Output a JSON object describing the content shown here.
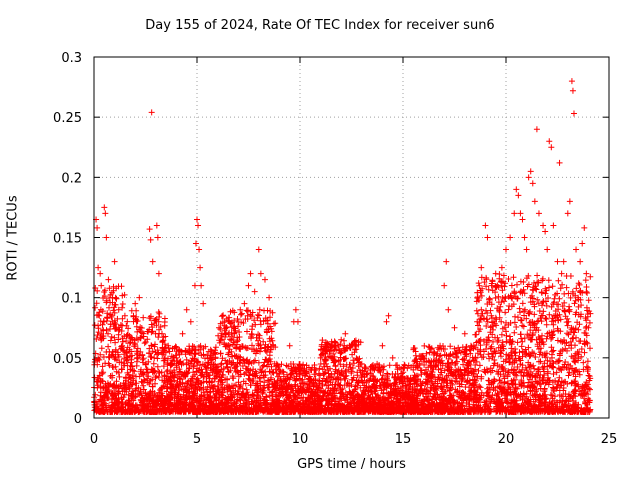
{
  "chart_data": {
    "type": "scatter",
    "title": "Day 155 of 2024, Rate Of TEC Index for receiver sun6",
    "xlabel": "GPS time / hours",
    "ylabel": "ROTI / TECUs",
    "xlim": [
      0,
      25
    ],
    "ylim": [
      0,
      0.3
    ],
    "xticks": [
      0,
      5,
      10,
      15,
      20,
      25
    ],
    "yticks": [
      0,
      0.05,
      0.1,
      0.15,
      0.2,
      0.25,
      0.3
    ],
    "xtick_labels": [
      "0",
      "5",
      "10",
      "15",
      "20",
      "25"
    ],
    "ytick_labels": [
      "0",
      "0.05",
      "0.1",
      "0.15",
      "0.2",
      "0.25",
      "0.3"
    ],
    "grid": true,
    "marker": "+",
    "color": "#ff0000",
    "series": [
      {
        "name": "ROTI",
        "points": [
          [
            0.1,
            0.165
          ],
          [
            0.15,
            0.158
          ],
          [
            0.2,
            0.125
          ],
          [
            0.3,
            0.12
          ],
          [
            0.35,
            0.11
          ],
          [
            0.5,
            0.175
          ],
          [
            0.55,
            0.17
          ],
          [
            0.6,
            0.15
          ],
          [
            0.7,
            0.115
          ],
          [
            0.9,
            0.1
          ],
          [
            1.0,
            0.13
          ],
          [
            1.2,
            0.09
          ],
          [
            1.5,
            0.085
          ],
          [
            2.0,
            0.095
          ],
          [
            2.2,
            0.1
          ],
          [
            2.8,
            0.254
          ],
          [
            2.7,
            0.157
          ],
          [
            2.75,
            0.148
          ],
          [
            2.85,
            0.13
          ],
          [
            3.05,
            0.16
          ],
          [
            3.1,
            0.15
          ],
          [
            3.15,
            0.12
          ],
          [
            3.3,
            0.07
          ],
          [
            3.6,
            0.06
          ],
          [
            4.0,
            0.05
          ],
          [
            4.3,
            0.07
          ],
          [
            4.5,
            0.09
          ],
          [
            4.7,
            0.08
          ],
          [
            4.9,
            0.11
          ],
          [
            4.95,
            0.145
          ],
          [
            5.0,
            0.165
          ],
          [
            5.05,
            0.16
          ],
          [
            5.1,
            0.14
          ],
          [
            5.15,
            0.125
          ],
          [
            5.2,
            0.11
          ],
          [
            5.3,
            0.095
          ],
          [
            6.2,
            0.04
          ],
          [
            6.5,
            0.06
          ],
          [
            6.8,
            0.07
          ],
          [
            7.1,
            0.09
          ],
          [
            7.3,
            0.095
          ],
          [
            7.5,
            0.11
          ],
          [
            7.6,
            0.12
          ],
          [
            7.8,
            0.105
          ],
          [
            8.0,
            0.14
          ],
          [
            8.1,
            0.12
          ],
          [
            8.3,
            0.115
          ],
          [
            8.5,
            0.1
          ],
          [
            8.7,
            0.06
          ],
          [
            9.5,
            0.06
          ],
          [
            9.7,
            0.08
          ],
          [
            9.8,
            0.09
          ],
          [
            9.9,
            0.08
          ],
          [
            10.5,
            0.04
          ],
          [
            11.0,
            0.05
          ],
          [
            11.5,
            0.06
          ],
          [
            12.0,
            0.065
          ],
          [
            12.2,
            0.07
          ],
          [
            12.4,
            0.06
          ],
          [
            13.0,
            0.045
          ],
          [
            13.5,
            0.035
          ],
          [
            14.0,
            0.06
          ],
          [
            14.2,
            0.08
          ],
          [
            14.3,
            0.085
          ],
          [
            14.5,
            0.05
          ],
          [
            15.0,
            0.03
          ],
          [
            15.5,
            0.04
          ],
          [
            16.0,
            0.05
          ],
          [
            16.5,
            0.055
          ],
          [
            16.8,
            0.06
          ],
          [
            17.0,
            0.11
          ],
          [
            17.1,
            0.13
          ],
          [
            17.2,
            0.09
          ],
          [
            17.5,
            0.075
          ],
          [
            18.0,
            0.07
          ],
          [
            18.3,
            0.06
          ],
          [
            18.6,
            0.08
          ],
          [
            18.8,
            0.125
          ],
          [
            19.0,
            0.16
          ],
          [
            19.1,
            0.15
          ],
          [
            19.3,
            0.11
          ],
          [
            19.5,
            0.12
          ],
          [
            19.8,
            0.125
          ],
          [
            20.0,
            0.14
          ],
          [
            20.2,
            0.15
          ],
          [
            20.4,
            0.17
          ],
          [
            20.5,
            0.19
          ],
          [
            20.6,
            0.185
          ],
          [
            20.7,
            0.17
          ],
          [
            20.8,
            0.165
          ],
          [
            20.9,
            0.15
          ],
          [
            21.0,
            0.14
          ],
          [
            21.1,
            0.2
          ],
          [
            21.2,
            0.205
          ],
          [
            21.3,
            0.195
          ],
          [
            21.4,
            0.18
          ],
          [
            21.5,
            0.24
          ],
          [
            21.6,
            0.17
          ],
          [
            21.8,
            0.16
          ],
          [
            21.9,
            0.155
          ],
          [
            22.0,
            0.14
          ],
          [
            22.1,
            0.23
          ],
          [
            22.2,
            0.225
          ],
          [
            22.3,
            0.16
          ],
          [
            22.5,
            0.13
          ],
          [
            22.6,
            0.212
          ],
          [
            22.7,
            0.12
          ],
          [
            22.8,
            0.13
          ],
          [
            23.0,
            0.17
          ],
          [
            23.1,
            0.18
          ],
          [
            23.2,
            0.28
          ],
          [
            23.25,
            0.272
          ],
          [
            23.3,
            0.253
          ],
          [
            23.4,
            0.14
          ],
          [
            23.5,
            0.1
          ],
          [
            23.6,
            0.13
          ],
          [
            23.7,
            0.145
          ],
          [
            23.8,
            0.158
          ],
          [
            23.9,
            0.12
          ],
          [
            24.0,
            0.075
          ]
        ]
      }
    ],
    "dense_band": {
      "segments": [
        {
          "x": [
            0,
            1.5
          ],
          "low": 0.005,
          "high": 0.11
        },
        {
          "x": [
            1.5,
            3.5
          ],
          "low": 0.005,
          "high": 0.09
        },
        {
          "x": [
            3.5,
            6
          ],
          "low": 0.005,
          "high": 0.06
        },
        {
          "x": [
            6,
            8.8
          ],
          "low": 0.005,
          "high": 0.09
        },
        {
          "x": [
            8.8,
            11
          ],
          "low": 0.005,
          "high": 0.045
        },
        {
          "x": [
            11,
            13
          ],
          "low": 0.005,
          "high": 0.065
        },
        {
          "x": [
            13,
            15.5
          ],
          "low": 0.005,
          "high": 0.045
        },
        {
          "x": [
            15.5,
            18.5
          ],
          "low": 0.005,
          "high": 0.06
        },
        {
          "x": [
            18.5,
            24.1
          ],
          "low": 0.005,
          "high": 0.12
        }
      ]
    }
  }
}
